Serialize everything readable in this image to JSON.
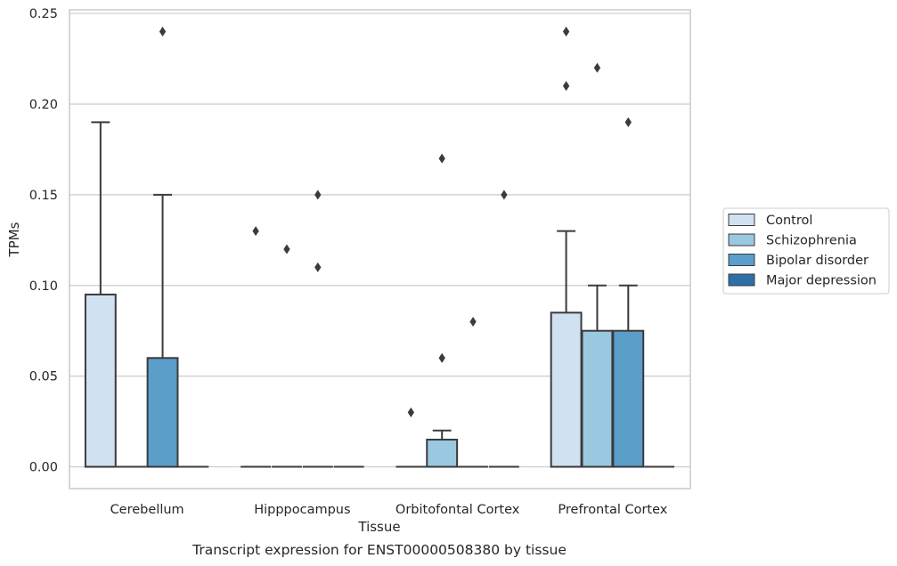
{
  "chart_data": {
    "type": "box",
    "xlabel": "Tissue",
    "ylabel": "TPMs",
    "caption": "Transcript expression for ENST00000508380 by tissue",
    "ylim": [
      -0.012,
      0.252
    ],
    "yticks": [
      "0.00",
      "0.05",
      "0.10",
      "0.15",
      "0.20",
      "0.25"
    ],
    "ytick_values": [
      0,
      0.05,
      0.1,
      0.15,
      0.2,
      0.25
    ],
    "grid": "horizontal",
    "legend_position": "right",
    "categories": [
      "Cerebellum",
      "Hipppocampus",
      "Orbitofontal Cortex",
      "Prefrontal Cortex"
    ],
    "series": [
      {
        "name": "Control",
        "color": "#d0e1f2",
        "boxes": [
          {
            "q1": 0,
            "median": 0,
            "q3": 0.095,
            "whisker_low": 0,
            "whisker_high": 0.19,
            "outliers": []
          },
          {
            "q1": 0,
            "median": 0,
            "q3": 0,
            "whisker_low": 0,
            "whisker_high": 0,
            "outliers": [
              0.13
            ]
          },
          {
            "q1": 0,
            "median": 0,
            "q3": 0,
            "whisker_low": 0,
            "whisker_high": 0,
            "outliers": [
              0.03
            ]
          },
          {
            "q1": 0,
            "median": 0,
            "q3": 0.085,
            "whisker_low": 0,
            "whisker_high": 0.13,
            "outliers": [
              0.21,
              0.24
            ]
          }
        ]
      },
      {
        "name": "Schizophrenia",
        "color": "#9ac8e0",
        "boxes": [
          {
            "q1": 0,
            "median": 0,
            "q3": 0,
            "whisker_low": 0,
            "whisker_high": 0,
            "outliers": []
          },
          {
            "q1": 0,
            "median": 0,
            "q3": 0,
            "whisker_low": 0,
            "whisker_high": 0,
            "outliers": [
              0.12
            ]
          },
          {
            "q1": 0,
            "median": 0,
            "q3": 0.015,
            "whisker_low": 0,
            "whisker_high": 0.02,
            "outliers": [
              0.06,
              0.17
            ]
          },
          {
            "q1": 0,
            "median": 0,
            "q3": 0.075,
            "whisker_low": 0,
            "whisker_high": 0.1,
            "outliers": [
              0.22
            ]
          }
        ]
      },
      {
        "name": "Bipolar disorder",
        "color": "#5a9ec9",
        "boxes": [
          {
            "q1": 0,
            "median": 0,
            "q3": 0.06,
            "whisker_low": 0,
            "whisker_high": 0.15,
            "outliers": [
              0.24
            ]
          },
          {
            "q1": 0,
            "median": 0,
            "q3": 0,
            "whisker_low": 0,
            "whisker_high": 0,
            "outliers": [
              0.11,
              0.15
            ]
          },
          {
            "q1": 0,
            "median": 0,
            "q3": 0,
            "whisker_low": 0,
            "whisker_high": 0,
            "outliers": [
              0.08
            ]
          },
          {
            "q1": 0,
            "median": 0,
            "q3": 0.075,
            "whisker_low": 0,
            "whisker_high": 0.1,
            "outliers": [
              0.19
            ]
          }
        ]
      },
      {
        "name": "Major depression",
        "color": "#2c6fa9",
        "boxes": [
          {
            "q1": 0,
            "median": 0,
            "q3": 0,
            "whisker_low": 0,
            "whisker_high": 0,
            "outliers": []
          },
          {
            "q1": 0,
            "median": 0,
            "q3": 0,
            "whisker_low": 0,
            "whisker_high": 0,
            "outliers": []
          },
          {
            "q1": 0,
            "median": 0,
            "q3": 0,
            "whisker_low": 0,
            "whisker_high": 0,
            "outliers": [
              0.15
            ]
          },
          {
            "q1": 0,
            "median": 0,
            "q3": 0,
            "whisker_low": 0,
            "whisker_high": 0,
            "outliers": []
          }
        ]
      }
    ]
  }
}
